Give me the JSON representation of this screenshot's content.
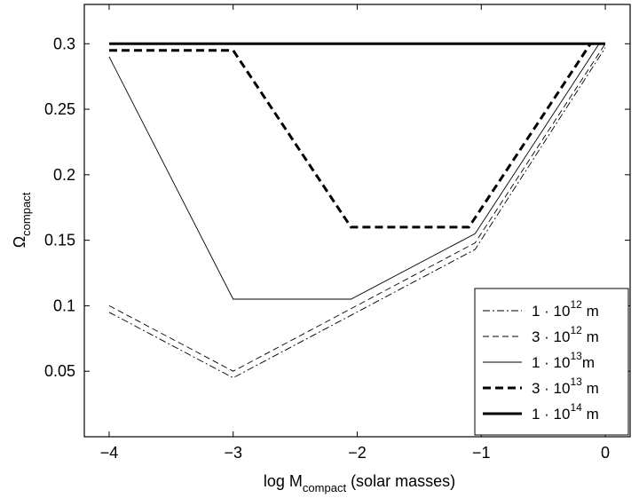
{
  "chart_data": {
    "type": "line",
    "xlabel_main": "log M",
    "xlabel_sub": "compact",
    "xlabel_tail": " (solar masses)",
    "ylabel_main": "Ω",
    "ylabel_sub": "compact",
    "xlim": [
      -4.2,
      0.2
    ],
    "ylim": [
      0.0,
      0.33
    ],
    "xticks": [
      -4,
      -3,
      -2,
      -1,
      0
    ],
    "xtick_labels": [
      "−4",
      "−3",
      "−2",
      "−1",
      "0"
    ],
    "yticks": [
      0.05,
      0.1,
      0.15,
      0.2,
      0.25,
      0.3
    ],
    "ytick_labels": [
      "0.05",
      "0.1",
      "0.15",
      "0.2",
      "0.25",
      "0.3"
    ],
    "grid": false,
    "legend_position": "bottom-right",
    "series": [
      {
        "name_prefix": "1 · 10",
        "name_exp": "12",
        "name_unit": " m",
        "style": "dashdot",
        "color": "#000000",
        "x": [
          -4,
          -3,
          -1.05,
          0
        ],
        "y": [
          0.095,
          0.045,
          0.143,
          0.297
        ]
      },
      {
        "name_prefix": "3 · 10",
        "name_exp": "12",
        "name_unit": " m",
        "style": "dashed-thin",
        "color": "#000000",
        "x": [
          -4,
          -3,
          -1.05,
          0
        ],
        "y": [
          0.1,
          0.05,
          0.148,
          0.3
        ]
      },
      {
        "name_prefix": "1 · 10",
        "name_exp": "13",
        "name_unit": "m",
        "style": "solid-thin",
        "color": "#000000",
        "x": [
          -4,
          -3,
          -2.05,
          -1.05,
          -0.05
        ],
        "y": [
          0.29,
          0.105,
          0.105,
          0.155,
          0.3
        ]
      },
      {
        "name_prefix": "3 · 10",
        "name_exp": "13",
        "name_unit": " m",
        "style": "dashed-thick",
        "color": "#000000",
        "x": [
          -4,
          -3,
          -2.05,
          -1.1,
          -0.12
        ],
        "y": [
          0.295,
          0.295,
          0.16,
          0.16,
          0.3
        ]
      },
      {
        "name_prefix": "1 · 10",
        "name_exp": "14",
        "name_unit": " m",
        "style": "solid-thick",
        "color": "#000000",
        "x": [
          -4,
          0
        ],
        "y": [
          0.3,
          0.3
        ]
      }
    ]
  }
}
